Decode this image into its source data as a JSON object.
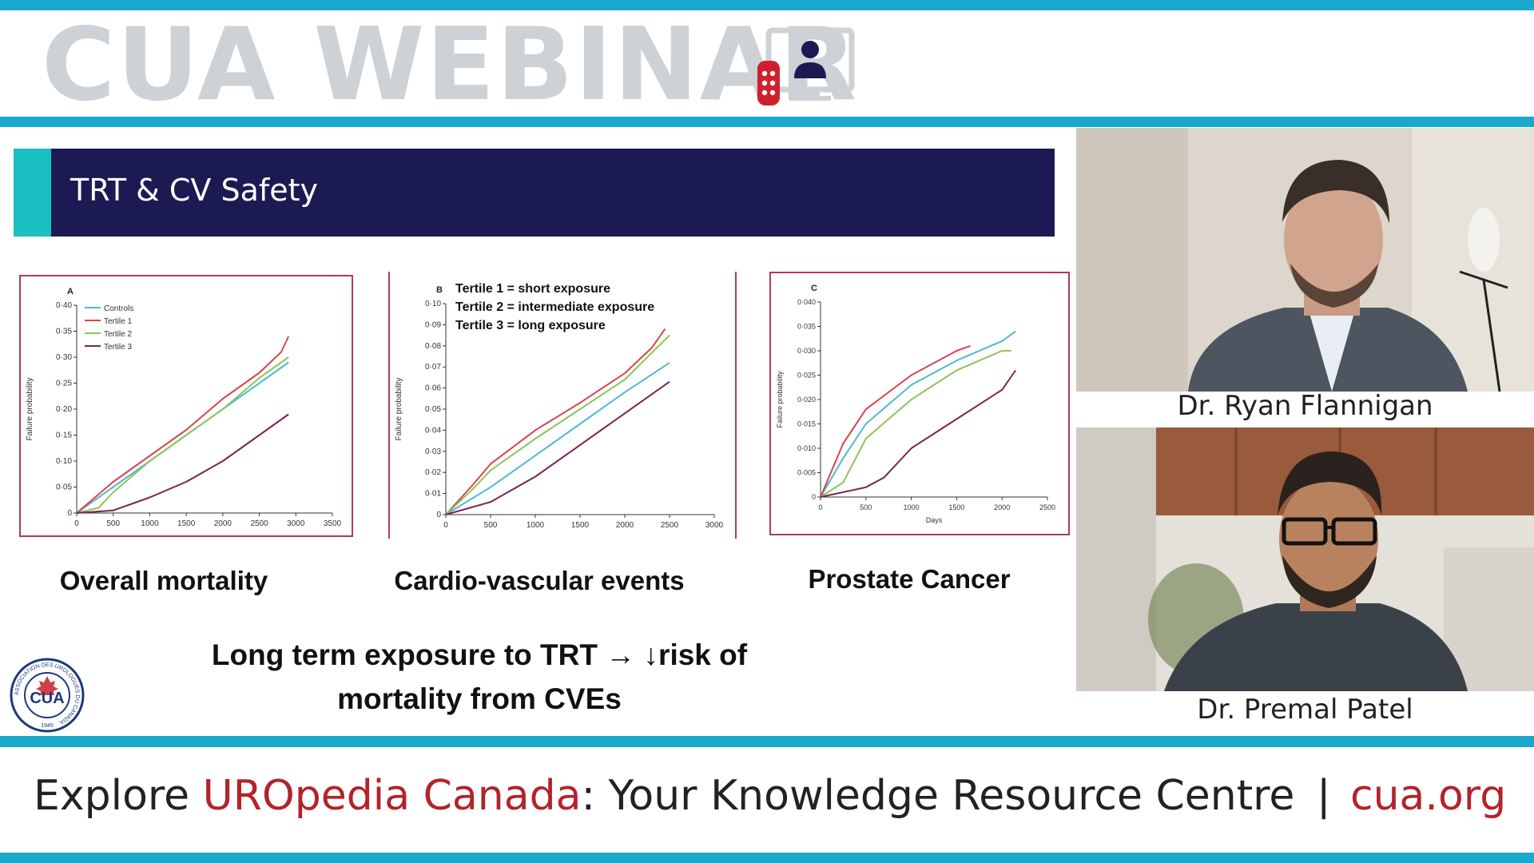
{
  "banner": {
    "title": "CUA WEBINAR",
    "icon": "webinar-monitor-person-icon",
    "colors": {
      "band": "#1aa8cc",
      "title": "#cdd2d6"
    }
  },
  "slide": {
    "title": "TRT & CV Safety",
    "header_color": "#1c1a52",
    "accent_color": "#1abfc2",
    "captions": [
      "Overall mortality",
      "Cardio-vascular events",
      "Prostate Cancer"
    ],
    "takeaway_line1": "Long term exposure to TRT → ↓risk of",
    "takeaway_line2": "mortality from CVEs",
    "logo": {
      "text": "CUA",
      "ring_text": "ASSOCIATION DES UROLOGUES DU CANADA",
      "year": "1945"
    }
  },
  "chart_data": [
    {
      "type": "line",
      "panel": "A",
      "ylabel": "Failure probability",
      "xlim": [
        0,
        3500
      ],
      "ylim": [
        0,
        0.4
      ],
      "xticks": [
        "0",
        "500",
        "1000",
        "1500",
        "2000",
        "2500",
        "3000",
        "3500"
      ],
      "yticks": [
        "0",
        "0·05",
        "0·10",
        "0·15",
        "0·20",
        "0·25",
        "0·30",
        "0·35",
        "0·40"
      ],
      "legend": [
        "Controls",
        "Tertile 1",
        "Tertile 2",
        "Tertile 3"
      ],
      "series": [
        {
          "name": "Controls",
          "color": "#4fb8d6",
          "x": [
            0,
            500,
            1000,
            1500,
            2000,
            2500,
            2900
          ],
          "y": [
            0,
            0.05,
            0.1,
            0.15,
            0.2,
            0.25,
            0.29
          ]
        },
        {
          "name": "Tertile 1",
          "color": "#d9434c",
          "x": [
            0,
            500,
            1000,
            1500,
            2000,
            2500,
            2800,
            2900
          ],
          "y": [
            0,
            0.06,
            0.11,
            0.16,
            0.22,
            0.27,
            0.31,
            0.34
          ]
        },
        {
          "name": "Tertile 2",
          "color": "#8cc45a",
          "x": [
            0,
            300,
            500,
            1000,
            1500,
            2000,
            2500,
            2900
          ],
          "y": [
            0,
            0.01,
            0.04,
            0.1,
            0.15,
            0.2,
            0.26,
            0.3
          ]
        },
        {
          "name": "Tertile 3",
          "color": "#7a2352",
          "x": [
            0,
            500,
            1000,
            1500,
            2000,
            2500,
            2900
          ],
          "y": [
            0,
            0.005,
            0.03,
            0.06,
            0.1,
            0.15,
            0.19
          ]
        }
      ]
    },
    {
      "type": "line",
      "panel": "B",
      "ylabel": "Failure probability",
      "annotations": [
        "Tertile 1 = short exposure",
        "Tertile 2 = intermediate exposure",
        "Tertile 3 = long exposure"
      ],
      "xlim": [
        0,
        3000
      ],
      "ylim": [
        0,
        0.1
      ],
      "xticks": [
        "0",
        "500",
        "1000",
        "1500",
        "2000",
        "2500",
        "3000"
      ],
      "yticks": [
        "0",
        "0·01",
        "0·02",
        "0·03",
        "0·04",
        "0·05",
        "0·06",
        "0·07",
        "0·08",
        "0·09",
        "0·10"
      ],
      "series": [
        {
          "name": "Controls",
          "color": "#4fb8d6",
          "x": [
            0,
            500,
            1000,
            1500,
            2000,
            2500
          ],
          "y": [
            0,
            0.013,
            0.028,
            0.043,
            0.058,
            0.072
          ]
        },
        {
          "name": "Tertile 1",
          "color": "#d9434c",
          "x": [
            0,
            300,
            500,
            1000,
            1500,
            2000,
            2300,
            2450
          ],
          "y": [
            0,
            0.014,
            0.024,
            0.04,
            0.053,
            0.067,
            0.079,
            0.088
          ]
        },
        {
          "name": "Tertile 2",
          "color": "#8cc45a",
          "x": [
            0,
            300,
            500,
            1000,
            1500,
            2000,
            2500
          ],
          "y": [
            0,
            0.012,
            0.021,
            0.036,
            0.05,
            0.064,
            0.085
          ]
        },
        {
          "name": "Tertile 3",
          "color": "#7a2352",
          "x": [
            0,
            500,
            1000,
            1500,
            2000,
            2500
          ],
          "y": [
            0,
            0.006,
            0.018,
            0.033,
            0.048,
            0.063
          ]
        }
      ]
    },
    {
      "type": "line",
      "panel": "C",
      "ylabel": "Failure probability",
      "xlabel": "Days",
      "xlim": [
        0,
        2500
      ],
      "ylim": [
        0,
        0.04
      ],
      "xticks": [
        "0",
        "500",
        "1000",
        "1500",
        "2000",
        "2500"
      ],
      "yticks": [
        "0",
        "0·005",
        "0·010",
        "0·015",
        "0·020",
        "0·025",
        "0·030",
        "0·035",
        "0·040"
      ],
      "series": [
        {
          "name": "Controls",
          "color": "#4fb8d6",
          "x": [
            0,
            250,
            500,
            1000,
            1500,
            2000,
            2150
          ],
          "y": [
            0,
            0.008,
            0.015,
            0.023,
            0.028,
            0.032,
            0.034
          ]
        },
        {
          "name": "Tertile 1",
          "color": "#d9434c",
          "x": [
            0,
            250,
            500,
            1000,
            1500,
            1650
          ],
          "y": [
            0,
            0.011,
            0.018,
            0.025,
            0.03,
            0.031
          ]
        },
        {
          "name": "Tertile 2",
          "color": "#8cc45a",
          "x": [
            0,
            250,
            500,
            1000,
            1500,
            2000,
            2100
          ],
          "y": [
            0,
            0.003,
            0.012,
            0.02,
            0.026,
            0.03,
            0.03
          ]
        },
        {
          "name": "Tertile 3",
          "color": "#7a2352",
          "x": [
            0,
            500,
            700,
            1000,
            1500,
            2000,
            2150
          ],
          "y": [
            0,
            0.002,
            0.004,
            0.01,
            0.016,
            0.022,
            0.026
          ]
        }
      ]
    }
  ],
  "participants": [
    {
      "name": "Dr. Ryan Flannigan"
    },
    {
      "name": "Dr. Premal Patel"
    }
  ],
  "footer": {
    "explore": "Explore ",
    "uropedia": "UROpedia Canada",
    "rest": ": Your Knowledge Resource Centre",
    "separator": "|",
    "link": "cua.org"
  }
}
